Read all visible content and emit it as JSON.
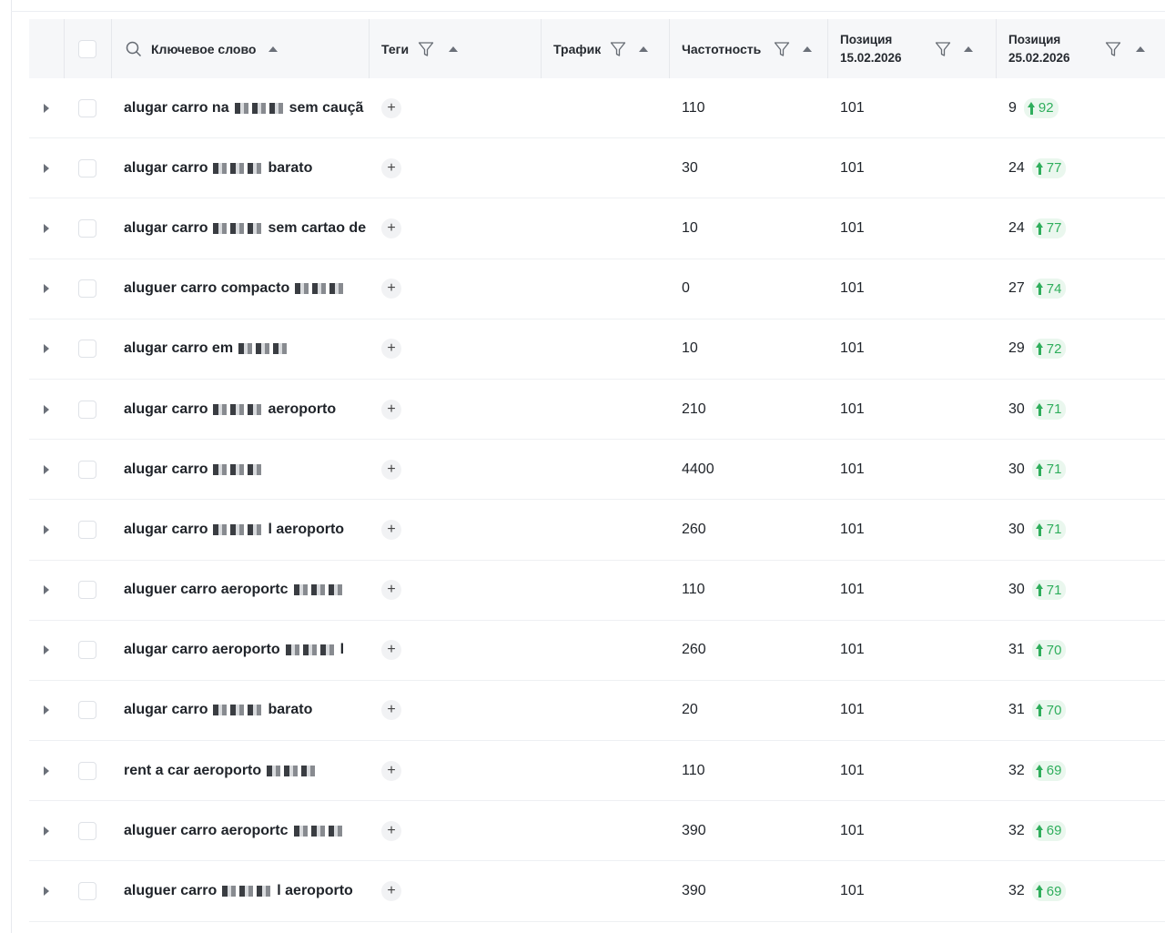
{
  "header": {
    "keyword": "Ключевое слово",
    "tags": "Теги",
    "traffic": "Трафик",
    "frequency": "Частотность",
    "position1": "Позиция 15.02.2026",
    "position2": "Позиция 25.02.2026"
  },
  "icons": {
    "search": "search-icon",
    "filter": "filter-icon",
    "sort": "sort-up-icon",
    "expand": "caret-right-icon",
    "add_tag": "plus-icon",
    "delta": "arrow-up-icon"
  },
  "colors": {
    "accent_green": "#2fae5c",
    "header_bg": "#f6f7f9"
  },
  "rows": [
    {
      "keyword": "alugar carro na",
      "keyword_tail": "sem cauçã",
      "frequency": "110",
      "position1": "101",
      "position2": "9",
      "delta": "92"
    },
    {
      "keyword": "alugar carro",
      "keyword_tail": "barato",
      "frequency": "30",
      "position1": "101",
      "position2": "24",
      "delta": "77"
    },
    {
      "keyword": "alugar carro",
      "keyword_tail": "sem cartao de",
      "frequency": "10",
      "position1": "101",
      "position2": "24",
      "delta": "77"
    },
    {
      "keyword": "aluguer carro compacto",
      "keyword_tail": "",
      "frequency": "0",
      "position1": "101",
      "position2": "27",
      "delta": "74"
    },
    {
      "keyword": "alugar carro em",
      "keyword_tail": "",
      "frequency": "10",
      "position1": "101",
      "position2": "29",
      "delta": "72"
    },
    {
      "keyword": "alugar carro",
      "keyword_tail": "aeroporto",
      "frequency": "210",
      "position1": "101",
      "position2": "30",
      "delta": "71"
    },
    {
      "keyword": "alugar carro",
      "keyword_tail": "",
      "frequency": "4400",
      "position1": "101",
      "position2": "30",
      "delta": "71"
    },
    {
      "keyword": "alugar carro",
      "keyword_tail": "l aeroporto",
      "frequency": "260",
      "position1": "101",
      "position2": "30",
      "delta": "71"
    },
    {
      "keyword": "aluguer carro aeroportc",
      "keyword_tail": "",
      "frequency": "110",
      "position1": "101",
      "position2": "30",
      "delta": "71"
    },
    {
      "keyword": "alugar carro aeroporto",
      "keyword_tail": "l",
      "frequency": "260",
      "position1": "101",
      "position2": "31",
      "delta": "70"
    },
    {
      "keyword": "alugar carro",
      "keyword_tail": "barato",
      "frequency": "20",
      "position1": "101",
      "position2": "31",
      "delta": "70"
    },
    {
      "keyword": "rent a car aeroporto",
      "keyword_tail": "",
      "frequency": "110",
      "position1": "101",
      "position2": "32",
      "delta": "69"
    },
    {
      "keyword": "aluguer carro aeroportc",
      "keyword_tail": "",
      "frequency": "390",
      "position1": "101",
      "position2": "32",
      "delta": "69"
    },
    {
      "keyword": "aluguer carro",
      "keyword_tail": "l aeroporto",
      "frequency": "390",
      "position1": "101",
      "position2": "32",
      "delta": "69"
    }
  ]
}
